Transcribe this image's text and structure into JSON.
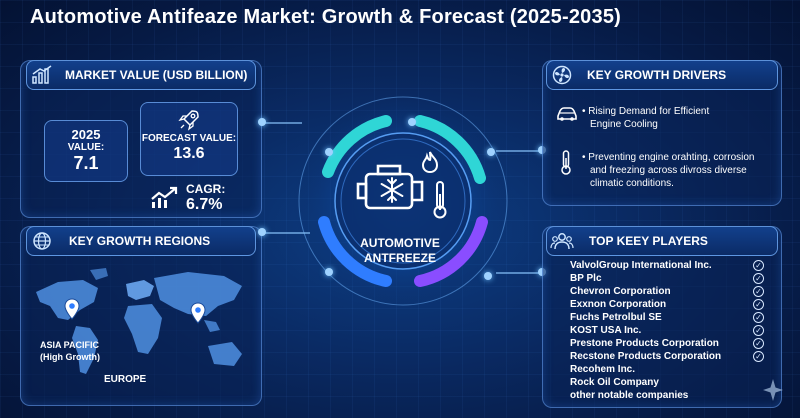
{
  "title": "Automotive Antifeaze Market: Growth & Forecast (2025-2035)",
  "market_value": {
    "heading": "MARKET VALUE (USD BILLION)",
    "year_label": "2025",
    "value_label": "VALUE:",
    "value": "7.1",
    "forecast_label": "FORECAST VALUE:",
    "forecast_value": "13.6",
    "cagr_label": "CAGR:",
    "cagr_value": "6.7%"
  },
  "regions": {
    "heading": "KEY GROWTH REGIONS",
    "asia_label": "ASIA PACIFIC",
    "asia_sub": "(High Growth)",
    "europe_label": "EUROPE"
  },
  "center": {
    "line1": "AUTOMOTIVE",
    "line2": "ANTFREEZE"
  },
  "drivers": {
    "heading": "KEY GROWTH DRIVERS",
    "item1_line1": "Rising Demand for Efficient",
    "item1_line2": "Engine Cooling",
    "item2_line1": "Preventing engine orahting, corrosion",
    "item2_line2": "and freezing across divross diverse",
    "item2_line3": "climatic conditions."
  },
  "players": {
    "heading": "TOP KEEY PLAYERS",
    "list": [
      "ValvolGroup International Inc.",
      "BP Plc",
      "Chevron Corporation",
      "Exxnon Corporation",
      "Fuchs Petrolbul SE",
      "KOST USA Inc.",
      "Prestone Products Corporation",
      "Recstone Products Corporation",
      "Recohem Inc.",
      "Rock Oil Company",
      "other notable companies"
    ]
  },
  "icons": [
    "bar-chart-icon",
    "rocket-icon",
    "trend-up-icon",
    "globe-icon",
    "fan-icon",
    "car-icon",
    "thermometer-icon",
    "people-icon",
    "engine-icon",
    "snowflake-icon",
    "flame-icon",
    "map-pin-icon",
    "check-icon",
    "sparkle-icon"
  ],
  "colors": {
    "accent_cyan": "#2fd6d6",
    "accent_blue": "#2f7dff",
    "accent_purple": "#8a4dff",
    "background": "#0a2a63"
  }
}
